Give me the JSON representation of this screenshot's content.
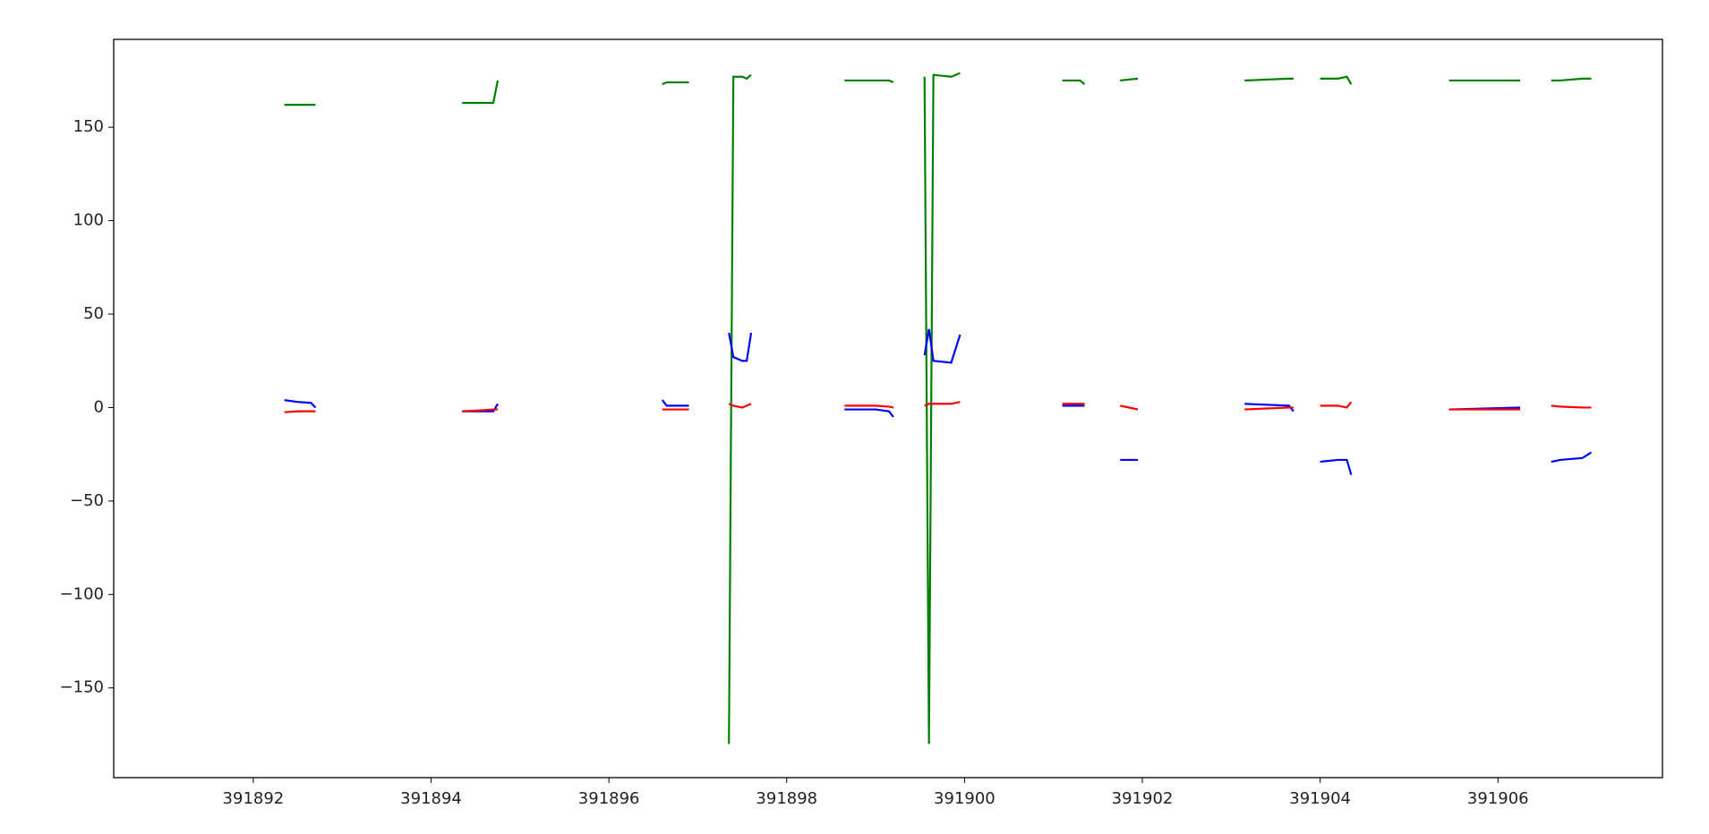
{
  "chart_data": {
    "type": "line",
    "x": [
      391892.35,
      391892.5,
      391892.65,
      391892.7,
      null,
      391894.35,
      391894.55,
      391894.7,
      391894.75,
      null,
      391896.6,
      391896.65,
      391896.9,
      null,
      391897.35,
      391897.4,
      391897.5,
      391897.55,
      391897.6,
      null,
      391898.65,
      391899.0,
      391899.15,
      391899.2,
      null,
      391899.55,
      391899.6,
      391899.65,
      391899.85,
      391899.95,
      null,
      391901.1,
      391901.3,
      391901.35,
      null,
      391901.75,
      391901.95,
      null,
      391903.15,
      391903.65,
      391903.7,
      null,
      391904.0,
      391904.2,
      391904.3,
      391904.35,
      null,
      391905.45,
      391906.25,
      null,
      391906.6,
      391906.7,
      391906.95,
      391907.05
    ],
    "series": [
      {
        "color": "#008000",
        "values": [
          162,
          162,
          162,
          162,
          null,
          163,
          163,
          163,
          175,
          null,
          173,
          174,
          174,
          null,
          -180,
          177,
          177,
          176,
          178,
          null,
          175,
          175,
          175,
          174,
          null,
          177,
          -180,
          178,
          177,
          179,
          null,
          175,
          175,
          173,
          null,
          175,
          176,
          null,
          175,
          176,
          176,
          null,
          176,
          176,
          177,
          173,
          null,
          175,
          175,
          null,
          175,
          175,
          176,
          176
        ]
      },
      {
        "color": "#0000ff",
        "values": [
          4,
          3,
          2.5,
          0,
          null,
          -2,
          -2,
          -2,
          2,
          null,
          4,
          1,
          1,
          null,
          40,
          27,
          25,
          25,
          40,
          null,
          -1,
          -1,
          -2,
          -5,
          null,
          28,
          42,
          25,
          24,
          39,
          null,
          1,
          1,
          1,
          null,
          -28,
          -28,
          null,
          2,
          1,
          -2,
          null,
          -29,
          -28,
          -28,
          -36,
          null,
          -1,
          0,
          null,
          -29,
          -28,
          -27,
          -24
        ]
      },
      {
        "color": "#ff0000",
        "values": [
          -2.5,
          -2,
          -2,
          -2,
          null,
          -2,
          -1.5,
          -1,
          -1,
          null,
          -1,
          -1,
          -1,
          null,
          2,
          1,
          0,
          1,
          2,
          null,
          1,
          1,
          0.5,
          0,
          null,
          1,
          2,
          2,
          2,
          3,
          null,
          2,
          2,
          2,
          null,
          1,
          -1,
          null,
          -1,
          0,
          0,
          null,
          1,
          1,
          0,
          3,
          null,
          -1,
          -1,
          null,
          1,
          0.5,
          0,
          0
        ]
      }
    ],
    "xlim": [
      391890.43,
      391907.85
    ],
    "xticks": [
      391892,
      391894,
      391896,
      391898,
      391900,
      391902,
      391904,
      391906
    ],
    "ylim": [
      -198,
      197
    ],
    "yticks": [
      {
        "value": -150,
        "label": "−150"
      },
      {
        "value": -100,
        "label": "−100"
      },
      {
        "value": -50,
        "label": "−50"
      },
      0,
      50,
      100,
      150
    ],
    "grid": false
  }
}
